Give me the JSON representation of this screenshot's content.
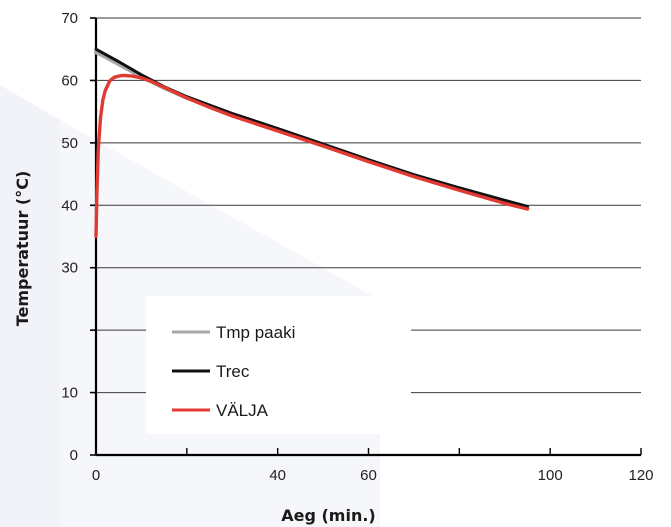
{
  "chart_data": {
    "type": "line",
    "xlabel": "Aeg (min.)",
    "ylabel": "Temperatuur  (°C)",
    "xlim": [
      0,
      120
    ],
    "ylim": [
      0,
      70
    ],
    "x_ticks": [
      0,
      20,
      40,
      60,
      80,
      100,
      120
    ],
    "x_tick_labels": [
      "0",
      "",
      "40",
      "60",
      "",
      "100",
      "120"
    ],
    "y_ticks": [
      0,
      10,
      20,
      30,
      40,
      50,
      60,
      70
    ],
    "y_tick_labels": [
      "0",
      "10",
      "",
      "30",
      "40",
      "50",
      "60",
      "70"
    ],
    "grid": "horizontal",
    "legend_position": "lower-left",
    "series": [
      {
        "name": "Tmp paaki",
        "color": "#a8a8a8",
        "x": [
          0,
          2,
          5,
          10,
          15,
          20,
          30,
          40,
          50,
          60,
          70,
          80,
          90,
          95
        ],
        "y": [
          64.5,
          63.8,
          62.6,
          60.6,
          58.8,
          57.2,
          54.6,
          52.2,
          49.7,
          47.2,
          44.8,
          42.6,
          40.6,
          39.6
        ]
      },
      {
        "name": "Trec",
        "color": "#111111",
        "x": [
          0,
          2,
          5,
          10,
          15,
          20,
          30,
          40,
          50,
          60,
          70,
          80,
          90,
          95
        ],
        "y": [
          65,
          64.2,
          63.0,
          60.9,
          59.0,
          57.4,
          54.7,
          52.3,
          49.8,
          47.3,
          44.9,
          42.8,
          40.8,
          39.8
        ]
      },
      {
        "name": "VÄLJA",
        "color": "#e03a33",
        "x": [
          0,
          0.2,
          0.5,
          1,
          1.5,
          2,
          3,
          4,
          5,
          6,
          8,
          10,
          12,
          15,
          20,
          25,
          30,
          40,
          50,
          60,
          70,
          80,
          90,
          95
        ],
        "y": [
          35,
          42,
          49,
          54,
          56.8,
          58.3,
          59.9,
          60.5,
          60.7,
          60.8,
          60.7,
          60.4,
          59.9,
          58.9,
          57.2,
          55.7,
          54.3,
          51.9,
          49.5,
          47.0,
          44.6,
          42.4,
          40.3,
          39.4
        ]
      }
    ]
  }
}
